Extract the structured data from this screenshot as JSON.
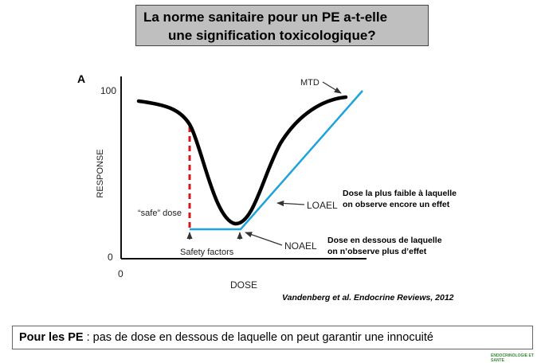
{
  "slide": {
    "title_line1": "La norme sanitaire pour un PE a-t-elle",
    "title_line2": "une signification toxicologique?"
  },
  "figure": {
    "panel_letter": "A",
    "y_axis_label": "RESPONSE",
    "x_axis_label": "DOSE",
    "y_tick_top": "100",
    "y_tick_bottom": "0",
    "x_tick_origin": "0",
    "labels": {
      "mtd": "MTD",
      "loael": "LOAEL",
      "noael": "NOAEL",
      "safe_dose": "“safe” dose",
      "safety_factors": "Safety factors"
    },
    "colors": {
      "curve": "#000000",
      "threshold_line": "#1ca3dc",
      "safety_gap": "#d0181e"
    }
  },
  "notes": {
    "loael_line1": "Dose la plus faible à laquelle",
    "loael_line2": "on observe encore un effet",
    "noael_line1": "Dose en dessous de laquelle",
    "noael_line2": "on n’observe plus d’effet"
  },
  "citation": "Vandenberg et al. Endocrine Reviews, 2012",
  "bottom": {
    "bold": "Pour les PE",
    "rest": " : pas de dose en dessous de laquelle on peut garantir une innocuité"
  },
  "footer_logo": "ENDOCRINOLOGIE ET SANTE"
}
